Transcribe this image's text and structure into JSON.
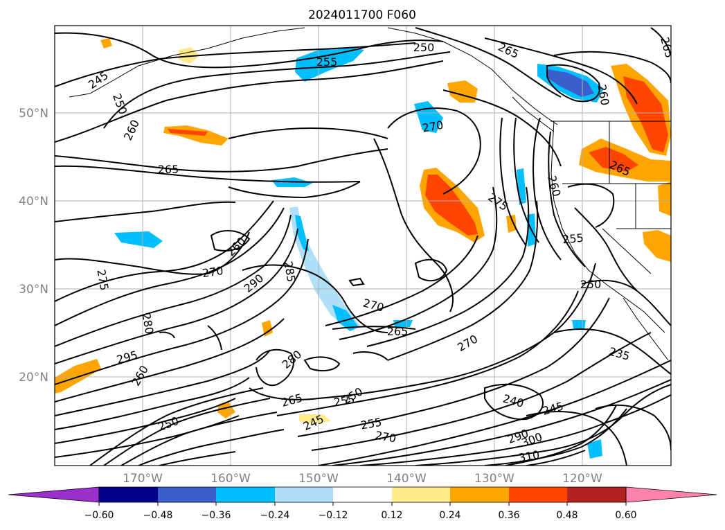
{
  "title": "2024011700 F060",
  "map": {
    "lat_labels": [
      "50°N",
      "40°N",
      "30°N",
      "20°N"
    ],
    "lon_labels": [
      "170°W",
      "160°W",
      "150°W",
      "140°W",
      "130°W",
      "120°W"
    ],
    "contour_labels": [
      "245",
      "250",
      "260",
      "265",
      "255",
      "250",
      "265",
      "265",
      "260",
      "270",
      "265",
      "275",
      "260",
      "255",
      "250",
      "270",
      "260",
      "285",
      "290",
      "275",
      "280",
      "270",
      "265",
      "270",
      "250",
      "235",
      "240",
      "245",
      "255",
      "250",
      "245",
      "255",
      "265",
      "280",
      "295",
      "300",
      "290",
      "310",
      "260",
      "270"
    ]
  },
  "colorbar": {
    "ticks": [
      "−0.60",
      "−0.48",
      "−0.36",
      "−0.24",
      "−0.12",
      "0.12",
      "0.24",
      "0.36",
      "0.48",
      "0.60"
    ],
    "colors": [
      "#9a2fcc",
      "#00008b",
      "#3a5fcd",
      "#00bfff",
      "#b0e0f8",
      "#ffffff",
      "#ffeb8a",
      "#ffa500",
      "#ff4500",
      "#b22222",
      "#ff82ab"
    ]
  }
}
